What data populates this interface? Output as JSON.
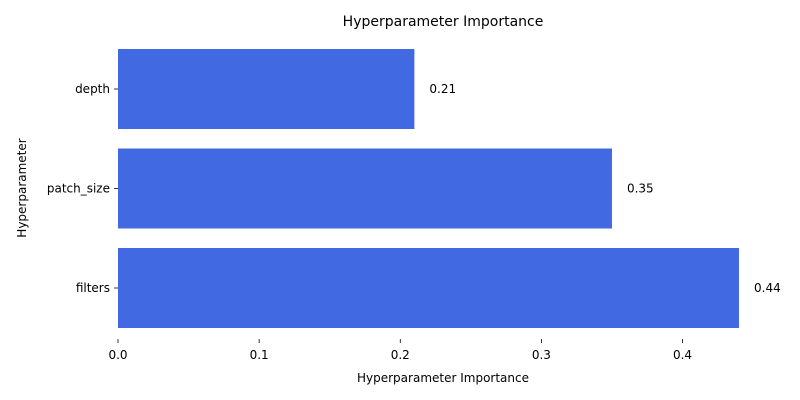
{
  "chart_data": {
    "type": "bar",
    "orientation": "horizontal",
    "title": "Hyperparameter Importance",
    "xlabel": "Hyperparameter Importance",
    "ylabel": "Hyperparameter",
    "categories": [
      "depth",
      "patch_size",
      "filters"
    ],
    "values": [
      0.21,
      0.35,
      0.44
    ],
    "data_labels": [
      "0.21",
      "0.35",
      "0.44"
    ],
    "xlim": [
      0,
      0.44
    ],
    "xticks": [
      0.0,
      0.1,
      0.2,
      0.3,
      0.4
    ],
    "xtick_labels": [
      "0.0",
      "0.1",
      "0.2",
      "0.3",
      "0.4"
    ],
    "grid": false,
    "legend": "none",
    "bar_color": "#4169e1"
  }
}
